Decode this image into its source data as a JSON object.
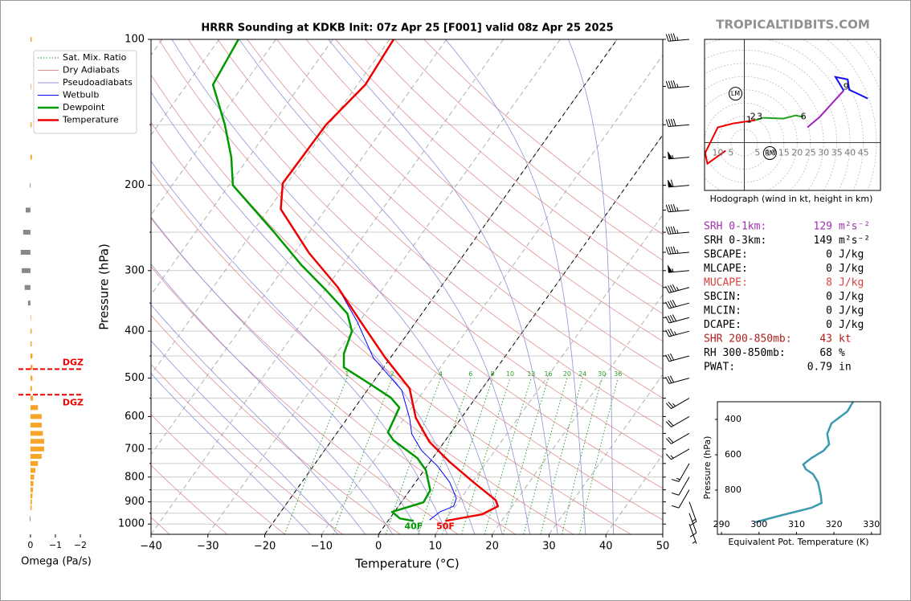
{
  "watermark": "TROPICALTIDBITS.COM",
  "stats": [
    {
      "label": "SRH 0-1km:",
      "value": 129,
      "unit": "m²s⁻²",
      "color": "#a030b0"
    },
    {
      "label": "SRH 0-3km:",
      "value": 149,
      "unit": "m²s⁻²",
      "color": "#000000"
    },
    {
      "label": "SBCAPE:",
      "value": 0,
      "unit": "J/kg",
      "color": "#000000"
    },
    {
      "label": "MLCAPE:",
      "value": 0,
      "unit": "J/kg",
      "color": "#000000"
    },
    {
      "label": "MUCAPE:",
      "value": 8,
      "unit": "J/kg",
      "color": "#d84040"
    },
    {
      "label": "SBCIN:",
      "value": 0,
      "unit": "J/kg",
      "color": "#000000"
    },
    {
      "label": "MLCIN:",
      "value": 0,
      "unit": "J/kg",
      "color": "#000000"
    },
    {
      "label": "DCAPE:",
      "value": 0,
      "unit": "J/kg",
      "color": "#000000"
    },
    {
      "label": "SHR 200-850mb:",
      "value": 43,
      "unit": "kt",
      "color": "#b02020"
    },
    {
      "label": "RH 300-850mb:",
      "value": 68,
      "unit": "%",
      "color": "#000000"
    },
    {
      "label": "PWAT:",
      "value": 0.79,
      "unit": "in",
      "color": "#000000"
    }
  ],
  "chart_data": [
    {
      "type": "skewt",
      "title": "HRRR Sounding at KDKB Init: 07z Apr 25 [F001] valid 08z Apr 25 2025",
      "xlabel": "Temperature (°C)",
      "ylabel": "Pressure (hPa)",
      "xlim": [
        -40,
        50
      ],
      "ylim": [
        1050,
        100
      ],
      "log_y": true,
      "xticks": [
        {
          "value": -40,
          "label": "−40"
        },
        {
          "value": -30,
          "label": "−30"
        },
        {
          "value": -20,
          "label": "−20"
        },
        {
          "value": -10,
          "label": "−10"
        },
        0,
        10,
        20,
        30,
        40,
        50
      ],
      "yticks": [
        100,
        200,
        300,
        400,
        500,
        600,
        700,
        800,
        900,
        1000
      ],
      "minor_yticks": [
        150,
        250,
        350,
        450,
        550,
        650,
        750,
        850,
        950
      ],
      "grid": true,
      "isotherms": {
        "color": "#b0b0b0",
        "values": [
          -120,
          -110,
          -100,
          -90,
          -80,
          -70,
          -60,
          -50,
          -40,
          -30,
          -20,
          -10,
          0,
          10,
          20,
          30,
          40,
          50
        ]
      },
      "highlight_isotherms": {
        "color": "#000000",
        "values": [
          -20,
          0
        ]
      },
      "reference_lines": [
        {
          "name": "Sat. Mix. Ratio",
          "kind": "mixing_ratio",
          "color": "#2ca02c",
          "values": [
            1,
            2,
            4,
            6,
            8,
            10,
            13,
            16,
            20,
            24,
            30,
            36
          ]
        },
        {
          "name": "Dry Adiabats",
          "kind": "dry",
          "color": "#e09090",
          "values": [
            -40,
            -30,
            -20,
            -10,
            0,
            10,
            20,
            30,
            40,
            50,
            60,
            70,
            80,
            90,
            100,
            110,
            120,
            130,
            140,
            150
          ]
        },
        {
          "name": "Pseudoadiabats",
          "kind": "moist",
          "color": "#9090d8",
          "values": [
            -15,
            -10,
            -5,
            0,
            5,
            10,
            15,
            20,
            25,
            30,
            35,
            40
          ]
        }
      ],
      "series": [
        {
          "name": "Wetbulb",
          "color": "#0000ff",
          "width": 1,
          "pressure": [
            100,
            124,
            150,
            198,
            224,
            276,
            324,
            382,
            454,
            529,
            604,
            652,
            704,
            760,
            820,
            885,
            919,
            944,
            981
          ],
          "values": [
            -59.3,
            -58.6,
            -60.5,
            -60.8,
            -57.9,
            -47.4,
            -38.2,
            -30.4,
            -23.0,
            -14.0,
            -9.1,
            -6.7,
            -3.0,
            1.9,
            6.0,
            9.2,
            9.7,
            8.0,
            7.2
          ]
        },
        {
          "name": "Dewpoint",
          "color": "#009900",
          "width": 2.5,
          "surface_label": "40F",
          "pressure": [
            100,
            124,
            150,
            175,
            200,
            249,
            292,
            328,
            368,
            400,
            445,
            475,
            519,
            549,
            575,
            647,
            672,
            731,
            774,
            852,
            902,
            944,
            974,
            985
          ],
          "values": [
            -86.6,
            -85.4,
            -78.3,
            -73.1,
            -69.3,
            -56.4,
            -47.3,
            -40.0,
            -33.1,
            -30.1,
            -28.7,
            -27.0,
            -19.5,
            -14.9,
            -12.2,
            -11.1,
            -9.1,
            -2.7,
            0.3,
            3.6,
            3.9,
            -0.4,
            1.8,
            4.5
          ]
        },
        {
          "name": "Temperature",
          "color": "#ee0000",
          "width": 2.5,
          "surface_label": "50F",
          "pressure": [
            100,
            124,
            150,
            198,
            224,
            276,
            324,
            385,
            454,
            525,
            604,
            677,
            745,
            820,
            892,
            919,
            955,
            985
          ],
          "values": [
            -59.3,
            -58.6,
            -60.5,
            -60.8,
            -57.9,
            -47.4,
            -38.2,
            -29.4,
            -20.9,
            -12.8,
            -8.0,
            -2.6,
            3.5,
            10.2,
            16.3,
            17.5,
            15.7,
            10.1
          ]
        }
      ],
      "wind": {
        "pressure": [
          100,
          125,
          150,
          175,
          200,
          225,
          250,
          275,
          300,
          325,
          350,
          375,
          400,
          450,
          500,
          550,
          600,
          650,
          700,
          750,
          800,
          850,
          900,
          950,
          1000
        ],
        "speed": [
          45,
          45,
          40,
          55,
          60,
          45,
          45,
          45,
          55,
          45,
          40,
          40,
          35,
          30,
          30,
          25,
          20,
          20,
          15,
          15,
          10,
          10,
          15,
          10,
          5
        ],
        "direction": [
          265,
          265,
          265,
          265,
          265,
          265,
          265,
          265,
          265,
          255,
          255,
          255,
          255,
          255,
          255,
          240,
          240,
          240,
          240,
          210,
          210,
          210,
          160,
          160,
          160
        ]
      }
    },
    {
      "type": "hodograph",
      "xlabel": "Hodograph (wind in kt, height in km)",
      "xlim": [
        -15,
        51.5
      ],
      "ylim": [
        -18,
        39
      ],
      "xticks": [
        {
          "value": -10,
          "label": "10"
        },
        {
          "value": -5,
          "label": "5"
        },
        5,
        10,
        15,
        20,
        25,
        30,
        35,
        40,
        45
      ],
      "rings": [
        5,
        10,
        15,
        20,
        25,
        30,
        35,
        40,
        45,
        50,
        55,
        60,
        65
      ],
      "series": [
        {
          "color": "#ee0000",
          "x": [
            -7.0,
            -13.9,
            -14.8,
            -10.0,
            -4.2,
            4.2
          ],
          "values": [
            -3.0,
            -7.9,
            -3.9,
            5.8,
            7.3,
            8.5
          ]
        },
        {
          "color": "#22a022",
          "x": [
            4.2,
            7.3,
            14.8,
            19.4,
            22.4
          ],
          "values": [
            8.5,
            9.4,
            9.1,
            10.3,
            9.7
          ]
        },
        {
          "color": "#a020c0",
          "x": [
            23.9,
            28.5,
            37.6
          ],
          "values": [
            5.8,
            9.7,
            19.7
          ]
        },
        {
          "color": "#1010ee",
          "x": [
            37.6,
            34.5,
            39.1,
            39.7,
            46.7
          ],
          "values": [
            19.7,
            24.8,
            23.9,
            20.0,
            16.7
          ]
        }
      ],
      "annotations": [
        {
          "text": "1",
          "u": 1.8,
          "v": 8.5
        },
        {
          "text": "2",
          "u": 3.3,
          "v": 9.7
        },
        {
          "text": "3",
          "u": 5.8,
          "v": 9.7
        },
        {
          "text": "6",
          "u": 22.4,
          "v": 9.7
        },
        {
          "text": "9",
          "u": 38.5,
          "v": 20.9
        }
      ],
      "storm_motion": [
        {
          "text": "LM",
          "u": -3.3,
          "v": 18.5
        },
        {
          "text": "RM",
          "u": 9.7,
          "v": -3.9
        }
      ]
    },
    {
      "type": "line",
      "xlabel": "Equivalent Pot. Temperature (K)",
      "ylabel": "Pressure (hPa)",
      "xlim": [
        288.9,
        332.4
      ],
      "ylim": [
        1050,
        300
      ],
      "xticks": [
        290,
        300,
        310,
        320,
        330
      ],
      "yticks": [
        400,
        600,
        800
      ],
      "series": [
        {
          "color": "#3a9ab0",
          "pressure": [
            300,
            354.5,
            422.7,
            481.8,
            540.9,
            577.3,
            618.2,
            654.5,
            681.8,
            709.1,
            754.5,
            831.8,
            872.7,
            900,
            945.5,
            981.8
          ],
          "values": [
            325.1,
            323.6,
            319.3,
            318.2,
            318.7,
            317.2,
            314.0,
            311.8,
            312.5,
            314.4,
            315.7,
            316.5,
            316.7,
            314.0,
            305.4,
            299.0
          ]
        }
      ]
    },
    {
      "type": "omega",
      "xlabel": "Omega (Pa/s)",
      "xlim": [
        0.48,
        -2.13
      ],
      "ylim": [
        1050,
        100
      ],
      "log_y": true,
      "xticks": [
        0,
        {
          "value": -1,
          "label": "−1"
        },
        {
          "value": -2,
          "label": "−2"
        }
      ],
      "color_positive": "#888888",
      "color_negative": "#f7a52a",
      "pressure": [
        100,
        125,
        150,
        175,
        200,
        225,
        250,
        275,
        300,
        325,
        350,
        375,
        400,
        425,
        450,
        475,
        500,
        525,
        550,
        575,
        600,
        625,
        650,
        675,
        700,
        725,
        750,
        775,
        800,
        825,
        850,
        875,
        900,
        925,
        975
      ],
      "values": [
        -0.05,
        -0.03,
        -0.05,
        -0.06,
        0.02,
        0.19,
        0.29,
        0.39,
        0.35,
        0.23,
        0.1,
        -0.02,
        -0.05,
        -0.05,
        -0.08,
        -0.08,
        -0.08,
        -0.06,
        -0.1,
        -0.3,
        -0.45,
        -0.45,
        -0.5,
        -0.55,
        -0.55,
        -0.45,
        -0.3,
        -0.2,
        -0.15,
        -0.12,
        -0.1,
        -0.08,
        -0.06,
        -0.05,
        0.03
      ],
      "dgz": {
        "label": "DGZ",
        "color": "#ee0000",
        "bounds": [
          479,
          541
        ]
      }
    }
  ]
}
